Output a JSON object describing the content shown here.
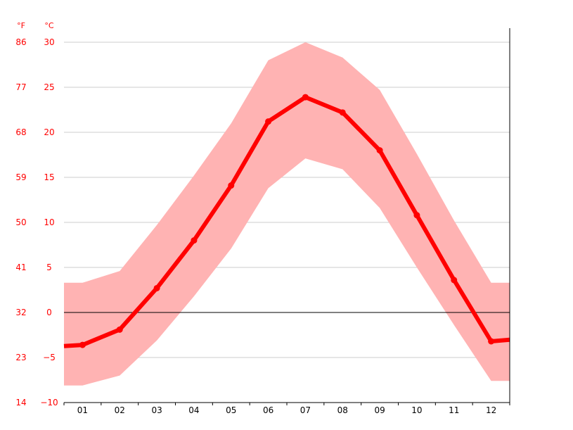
{
  "chart_data": {
    "type": "line",
    "x": [
      "01",
      "02",
      "03",
      "04",
      "05",
      "06",
      "07",
      "08",
      "09",
      "10",
      "11",
      "12"
    ],
    "series": [
      {
        "values": [
          -3.6,
          -1.9,
          2.7,
          8.0,
          14.1,
          21.2,
          23.9,
          22.2,
          18.0,
          10.8,
          3.6,
          -3.2
        ]
      }
    ],
    "band": {
      "upper": [
        3.3,
        4.6,
        9.7,
        15.2,
        21.0,
        28.0,
        30.0,
        28.3,
        24.7,
        17.6,
        10.2,
        3.3
      ],
      "lower": [
        -8.1,
        -7.0,
        -3.1,
        1.8,
        7.1,
        13.8,
        17.1,
        15.9,
        11.6,
        5.0,
        -1.4,
        -7.6
      ]
    },
    "ylim": [
      -10,
      30
    ],
    "yticks_c": [
      "30",
      "25",
      "20",
      "15",
      "10",
      "5",
      "0",
      "−5",
      "−10"
    ],
    "yticks_f": [
      "86",
      "77",
      "68",
      "59",
      "50",
      "41",
      "32",
      "23",
      "14"
    ],
    "unit_f": "°F",
    "unit_c": "°C",
    "grid": true,
    "colors": {
      "line": "#ff0000",
      "band": "#ffb3b3",
      "axis_text": "#ff0000",
      "grid": "#cccccc",
      "zero_line": "#000000"
    }
  }
}
